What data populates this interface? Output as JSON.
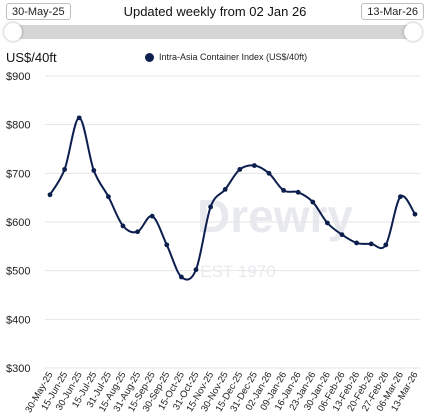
{
  "range": {
    "start_label": "30-May-25",
    "end_label": "13-Mar-26",
    "subtitle": "Updated weekly from 02 Jan 26"
  },
  "colors": {
    "line": "#0c1e4d",
    "grid": "#e6e6e6",
    "text": "#222222"
  },
  "chart_data": {
    "type": "line",
    "title": "",
    "ylabel": "US$/40ft",
    "xlabel": "",
    "ylim": [
      300,
      900
    ],
    "yticks": [
      300,
      400,
      500,
      600,
      700,
      800,
      900
    ],
    "ytick_labels": [
      "$300",
      "$400",
      "$500",
      "$600",
      "$700",
      "$800",
      "$900"
    ],
    "grid": true,
    "legend_position": "top",
    "categories": [
      "30-May-25",
      "15-Jun-25",
      "30-Jun-25",
      "15-Jul-25",
      "31-Jul-25",
      "15-Aug-25",
      "31-Aug-25",
      "15-Sep-25",
      "30-Sep-25",
      "15-Oct-25",
      "31-Oct-25",
      "15-Nov-25",
      "30-Nov-25",
      "15-Dec-25",
      "31-Dec-25",
      "02-Jan-26",
      "09-Jan-26",
      "16-Jan-26",
      "23-Jan-26",
      "30-Jan-26",
      "06-Feb-26",
      "13-Feb-26",
      "20-Feb-26",
      "27-Feb-26",
      "06-Mar-26",
      "13-Mar-26"
    ],
    "series": [
      {
        "name": "Intra-Asia Container Index (US$/40ft)",
        "values": [
          656,
          708,
          814,
          706,
          652,
          592,
          580,
          612,
          553,
          487,
          502,
          631,
          667,
          708,
          716,
          700,
          665,
          661,
          641,
          598,
          574,
          557,
          555,
          553,
          652,
          616
        ]
      }
    ]
  },
  "watermark": {
    "brand": "Drewry",
    "est": "EST 1970"
  }
}
